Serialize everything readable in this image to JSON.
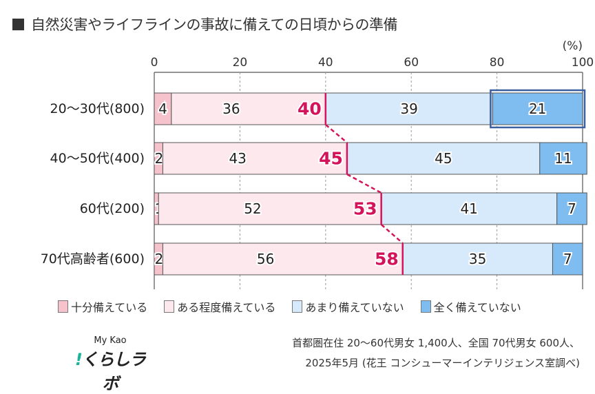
{
  "title": "自然災害やライフラインの事故に備えての日頃からの準備",
  "chart_data": {
    "type": "bar",
    "orientation": "horizontal-stacked",
    "unit_label": "(%)",
    "xlim": [
      0,
      100
    ],
    "ticks": [
      "0",
      "20",
      "40",
      "60",
      "80",
      "100"
    ],
    "grid": true,
    "legend_position": "bottom",
    "categories": [
      "20〜30代(800)",
      "40〜50代(400)",
      "60代(200)",
      "70代高齢者(600)"
    ],
    "series": [
      {
        "name": "十分備えている",
        "color": "#f6c3cd",
        "values": [
          4,
          2,
          1,
          2
        ]
      },
      {
        "name": "ある程度備えている",
        "color": "#fde8ed",
        "values": [
          36,
          43,
          52,
          56
        ]
      },
      {
        "name": "あまり備えていない",
        "color": "#d6eafb",
        "values": [
          39,
          45,
          41,
          35
        ]
      },
      {
        "name": "全く備えていない",
        "color": "#7fbdf0",
        "values": [
          21,
          11,
          7,
          7
        ]
      }
    ],
    "cumulative_prepared": [
      40,
      45,
      53,
      58
    ],
    "cumulative_color": "#d4145a",
    "highlight": {
      "category": "20〜30代(800)",
      "series": "全く備えていない",
      "color": "#3a5fa0"
    }
  },
  "logo": {
    "line1": "My Kao",
    "line2_mark": "!",
    "line2": "くらしラボ"
  },
  "note": {
    "line1": "首都圏在住 20〜60代男女 1,400人、全国 70代男女 600人、",
    "line2": "2025年5月 (花王 コンシューマーインテリジェンス室調べ)"
  }
}
